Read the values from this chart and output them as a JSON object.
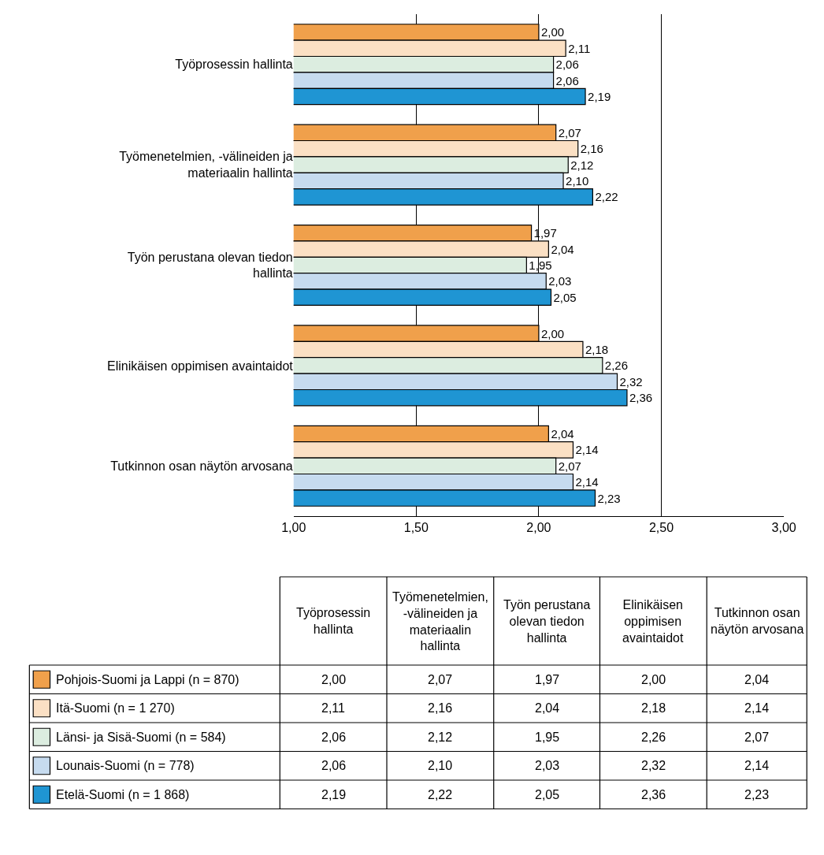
{
  "chart_data": {
    "type": "bar",
    "orientation": "horizontal",
    "categories": [
      "Työprosessin hallinta",
      "Työmenetelmien, -välineiden ja materiaalin hallinta",
      "Työn perustana olevan tiedon hallinta",
      "Elinikäisen oppimisen avaintaidot",
      "Tutkinnon osan näytön arvosana"
    ],
    "series": [
      {
        "name": "Pohjois-Suomi ja Lappi (n = 870)",
        "color": "#f0a04b",
        "values": [
          2.0,
          2.07,
          1.97,
          2.0,
          2.04
        ],
        "value_labels": [
          "2,00",
          "2,07",
          "1,97",
          "2,00",
          "2,04"
        ]
      },
      {
        "name": "Itä-Suomi (n = 1 270)",
        "color": "#fbe0c4",
        "values": [
          2.11,
          2.16,
          2.04,
          2.18,
          2.14
        ],
        "value_labels": [
          "2,11",
          "2,16",
          "2,04",
          "2,18",
          "2,14"
        ]
      },
      {
        "name": "Länsi- ja Sisä-Suomi (n = 584)",
        "color": "#dcede0",
        "values": [
          2.06,
          2.12,
          1.95,
          2.26,
          2.07
        ],
        "value_labels": [
          "2,06",
          "2,12",
          "1,95",
          "2,26",
          "2,07"
        ]
      },
      {
        "name": "Lounais-Suomi (n = 778)",
        "color": "#c6dbef",
        "values": [
          2.06,
          2.1,
          2.03,
          2.32,
          2.14
        ],
        "value_labels": [
          "2,06",
          "2,10",
          "2,03",
          "2,32",
          "2,14"
        ]
      },
      {
        "name": "Etelä-Suomi (n = 1 868)",
        "color": "#1f95d3",
        "values": [
          2.19,
          2.22,
          2.05,
          2.36,
          2.23
        ],
        "value_labels": [
          "2,19",
          "2,22",
          "2,05",
          "2,36",
          "2,23"
        ]
      }
    ],
    "xlim": [
      1.0,
      3.0
    ],
    "xticks": [
      {
        "value": 1.0,
        "label": "1,00"
      },
      {
        "value": 1.5,
        "label": "1,50"
      },
      {
        "value": 2.0,
        "label": "2,00"
      },
      {
        "value": 2.5,
        "label": "2,50"
      },
      {
        "value": 3.0,
        "label": "3,00"
      }
    ],
    "grid": "x",
    "legend": "bottom"
  }
}
